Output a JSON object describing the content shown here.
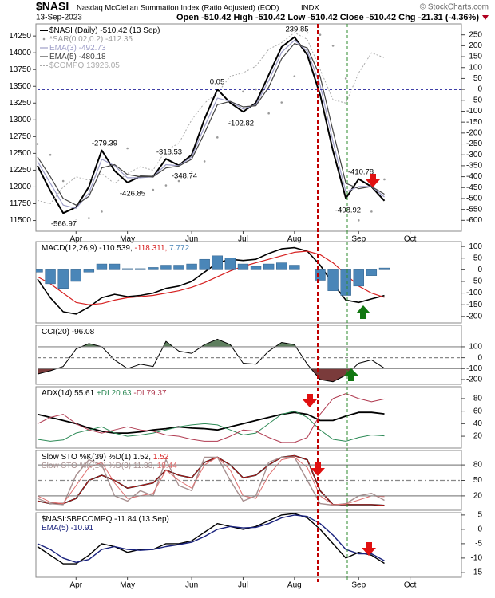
{
  "header": {
    "symbol": "$NASI",
    "title": "Nasdaq McClellan Summation Index (Ratio Adjusted) (EOD)",
    "exchange": "INDX",
    "credit": "© StockCharts.com",
    "date": "13-Sep-2023",
    "ohlc": "Open -510.42  High -510.42  Low -510.42  Close -510.42  Chg -21.31 (-4.36%)"
  },
  "chart_data": [
    {
      "type": "line",
      "categories": [
        null,
        null,
        null,
        "Apr",
        null,
        null,
        null,
        "May",
        null,
        null,
        null,
        null,
        "Jun",
        null,
        null,
        null,
        "Jul",
        null,
        null,
        null,
        "Aug",
        null,
        null,
        null,
        null,
        "Sep",
        null,
        null,
        null,
        "Oct",
        null,
        null,
        null,
        null
      ],
      "ylim": [
        -650,
        300
      ],
      "yticks": [
        250,
        200,
        150,
        100,
        50,
        0,
        -50,
        -100,
        -150,
        -200,
        -250,
        -300,
        -350,
        -400,
        -450,
        -500,
        -550,
        -600
      ],
      "y2lim": [
        11340,
        14430
      ],
      "y2ticks": [
        14250,
        14000,
        13750,
        13500,
        13250,
        13000,
        12750,
        12500,
        12250,
        12000,
        11750,
        11500
      ],
      "hlines": [
        {
          "value": 0,
          "color": "#00008b",
          "dash": "3,3"
        }
      ],
      "annotations": [
        "239.85",
        "0.05",
        "-102.82",
        "-279.39",
        "-318.53",
        "-348.74",
        "-426.85",
        "-566.97",
        "-410.78",
        "-498.92"
      ],
      "series": [
        {
          "name": "$NASI (Daily) -510.42 (13 Sep)",
          "color": "#000000",
          "width": 2,
          "values": [
            -350,
            -465,
            -566.97,
            -540,
            -446,
            -279.39,
            -373,
            -426.85,
            -399,
            -400,
            -318.53,
            -348.74,
            -300,
            -135,
            0.05,
            -62,
            -102.82,
            -62,
            66,
            194,
            239.85,
            158,
            -25,
            -282,
            -498.92,
            -410.78,
            -446,
            -510.42,
            null,
            null,
            null,
            null,
            null,
            null
          ]
        },
        {
          "name": "*SAR(0.02,0.2) -412.35",
          "color": "#9a9a9a",
          "kind": "dots",
          "values": [
            -250,
            -300,
            -420,
            -600,
            -590,
            -560,
            -250,
            -270,
            -470,
            -460,
            -440,
            -420,
            -380,
            -330,
            -220,
            -150,
            -10,
            0,
            -110,
            -60,
            60,
            260,
            250,
            200,
            50,
            -600,
            -560,
            -412.35,
            null,
            null,
            null,
            null,
            null,
            null
          ]
        },
        {
          "name": "EMA(3) -492.73",
          "color": "#9e9ec8",
          "width": 1.2,
          "values": [
            -330,
            -430,
            -530,
            -545,
            -475,
            -320,
            -350,
            -405,
            -405,
            -400,
            -345,
            -350,
            -310,
            -170,
            -40,
            -55,
            -90,
            -70,
            40,
            170,
            225,
            175,
            20,
            -240,
            -470,
            -445,
            -445,
            -492.73,
            null,
            null,
            null,
            null,
            null,
            null
          ]
        },
        {
          "name": "EMA(5) -480.18",
          "color": "#444444",
          "width": 1.2,
          "values": [
            -310,
            -400,
            -500,
            -530,
            -490,
            -360,
            -345,
            -390,
            -400,
            -400,
            -360,
            -352,
            -320,
            -200,
            -70,
            -55,
            -80,
            -75,
            10,
            140,
            210,
            190,
            60,
            -190,
            -430,
            -455,
            -445,
            -480.18,
            null,
            null,
            null,
            null,
            null,
            null
          ]
        },
        {
          "name": "$COMPQ 13926.05",
          "color": "#aaaaaa",
          "width": 1,
          "dash": "2,2",
          "axis": "y2",
          "values": [
            11800,
            11750,
            12000,
            12150,
            12100,
            12200,
            12050,
            12200,
            12300,
            12250,
            12550,
            12650,
            13000,
            13250,
            13400,
            13650,
            13700,
            13800,
            14050,
            14150,
            14300,
            14200,
            13750,
            13300,
            13250,
            13700,
            14000,
            13926.05,
            null,
            null,
            null,
            null,
            null,
            null
          ]
        }
      ]
    },
    {
      "type": "line",
      "ylim": [
        -228,
        121
      ],
      "yticks": [
        100,
        50,
        0,
        -50,
        -100,
        -150,
        -200
      ],
      "series": [
        {
          "name": "MACD(12,26,9) -110.539,",
          "color": "#000000",
          "width": 1.6,
          "values": [
            -40,
            -120,
            -180,
            -190,
            -160,
            -120,
            -105,
            -115,
            -110,
            -100,
            -80,
            -70,
            -50,
            -10,
            30,
            45,
            40,
            45,
            70,
            90,
            95,
            80,
            20,
            -60,
            -130,
            -140,
            -125,
            -110.539,
            null,
            null,
            null,
            null,
            null,
            null
          ]
        },
        {
          "name": "-118.311,",
          "color": "#d62020",
          "width": 1.2,
          "values": [
            -30,
            -60,
            -100,
            -140,
            -150,
            -145,
            -130,
            -120,
            -115,
            -110,
            -100,
            -90,
            -75,
            -55,
            -30,
            -5,
            15,
            30,
            45,
            60,
            75,
            80,
            65,
            30,
            -20,
            -70,
            -100,
            -118.311,
            null,
            null,
            null,
            null,
            null,
            null
          ]
        },
        {
          "name": "7.772",
          "color": "#4a86b8",
          "kind": "bar",
          "values": [
            -10,
            -60,
            -80,
            -50,
            -10,
            25,
            25,
            5,
            5,
            10,
            20,
            20,
            25,
            45,
            60,
            50,
            25,
            15,
            25,
            30,
            20,
            0,
            -45,
            -90,
            -110,
            -70,
            -25,
            7.772,
            null,
            null,
            null,
            null,
            null,
            null
          ]
        }
      ]
    },
    {
      "type": "line",
      "ylim": [
        -244,
        297
      ],
      "yticks": [
        100,
        0,
        -100,
        -200
      ],
      "hlines": [
        {
          "value": 100,
          "color": "#888888",
          "dash": "none"
        },
        {
          "value": 0,
          "color": "#888888",
          "dash": "4,3"
        },
        {
          "value": -100,
          "color": "#888888",
          "dash": "none"
        }
      ],
      "fill_above": {
        "value": 100,
        "color": "#5f7f5f"
      },
      "fill_below": {
        "value": -100,
        "color": "#7a3b3b"
      },
      "series": [
        {
          "name": "CCI(20) -96.08",
          "color": "#000000",
          "width": 1,
          "values": [
            -150,
            -120,
            -80,
            80,
            130,
            100,
            -20,
            -100,
            -60,
            -80,
            150,
            60,
            40,
            120,
            170,
            120,
            -50,
            -60,
            60,
            140,
            120,
            -60,
            -200,
            -220,
            -160,
            -50,
            -20,
            -96.08,
            null,
            null,
            null,
            null,
            null,
            null
          ]
        }
      ]
    },
    {
      "type": "line",
      "ylim": [
        1,
        99
      ],
      "yticks": [
        80,
        60,
        40,
        20
      ],
      "series": [
        {
          "name": "ADX(14) 55.61",
          "color": "#000000",
          "width": 1.8,
          "values": [
            55,
            50,
            45,
            40,
            33,
            28,
            25,
            25,
            27,
            30,
            32,
            35,
            33,
            32,
            30,
            35,
            40,
            45,
            50,
            55,
            58,
            55,
            45,
            45,
            52,
            58,
            58,
            55.61,
            null,
            null,
            null,
            null,
            null,
            null
          ]
        },
        {
          "name": "+DI 20.63",
          "color": "#2e8b57",
          "width": 1,
          "values": [
            15,
            12,
            14,
            25,
            30,
            35,
            25,
            20,
            22,
            25,
            30,
            35,
            38,
            40,
            38,
            30,
            22,
            25,
            40,
            55,
            60,
            50,
            30,
            15,
            12,
            18,
            22,
            20.63,
            null,
            null,
            null,
            null,
            null,
            null
          ]
        },
        {
          "name": "-DI 79.37",
          "color": "#b03a50",
          "width": 1,
          "values": [
            40,
            50,
            55,
            40,
            30,
            25,
            30,
            35,
            30,
            28,
            22,
            20,
            15,
            12,
            12,
            20,
            30,
            28,
            18,
            10,
            10,
            18,
            55,
            80,
            88,
            80,
            75,
            79.37,
            null,
            null,
            null,
            null,
            null,
            null
          ]
        }
      ]
    },
    {
      "type": "line",
      "ylim": [
        -8,
        108
      ],
      "yticks": [
        80,
        50,
        20
      ],
      "hlines": [
        {
          "value": 80,
          "color": "#888888",
          "dash": "none"
        },
        {
          "value": 50,
          "color": "#888888",
          "dash": "6,3,2,3"
        },
        {
          "value": 20,
          "color": "#888888",
          "dash": "none"
        }
      ],
      "series": [
        {
          "name": "Slow STO %K(39) %D(1) 1.52,",
          "color": "#000000",
          "width": 1.6,
          "values": [
            10,
            5,
            5,
            15,
            50,
            60,
            50,
            35,
            40,
            45,
            70,
            60,
            55,
            85,
            95,
            80,
            55,
            60,
            80,
            95,
            98,
            90,
            30,
            3,
            3,
            3,
            3,
            1.52,
            null,
            null,
            null,
            null,
            null,
            null
          ]
        },
        {
          "name": "1.52",
          "color": "#d62020",
          "width": 0.8,
          "values": [
            10,
            5,
            5,
            15,
            50,
            60,
            50,
            35,
            40,
            45,
            70,
            60,
            55,
            85,
            95,
            80,
            55,
            60,
            80,
            95,
            98,
            90,
            30,
            3,
            3,
            3,
            3,
            1.52,
            null,
            null,
            null,
            null,
            null,
            null
          ]
        },
        {
          "name": "Slow STO %K(14) %D(3) 11.33,",
          "color": "#a89090",
          "width": 1.4,
          "values": [
            15,
            5,
            3,
            60,
            90,
            80,
            20,
            10,
            30,
            20,
            90,
            40,
            30,
            95,
            95,
            50,
            10,
            20,
            85,
            95,
            95,
            50,
            5,
            2,
            5,
            20,
            25,
            11.33,
            null,
            null,
            null,
            null,
            null,
            null
          ]
        },
        {
          "name": "18.44",
          "color": "#e07070",
          "width": 1,
          "values": [
            20,
            8,
            5,
            40,
            75,
            85,
            45,
            15,
            20,
            25,
            70,
            50,
            35,
            80,
            95,
            70,
            20,
            15,
            60,
            90,
            95,
            75,
            20,
            3,
            4,
            12,
            20,
            18.44,
            null,
            null,
            null,
            null,
            null,
            null
          ]
        }
      ]
    },
    {
      "type": "line",
      "categories": [
        null,
        null,
        null,
        "Apr",
        null,
        null,
        null,
        "May",
        null,
        null,
        null,
        null,
        "Jun",
        null,
        null,
        null,
        "Jul",
        null,
        null,
        null,
        "Aug",
        null,
        null,
        null,
        null,
        "Sep",
        null,
        null,
        null,
        "Oct",
        null,
        null,
        null,
        null
      ],
      "ylim": [
        -16.7,
        5.8
      ],
      "yticks": [
        5,
        0,
        -5,
        -10,
        -15
      ],
      "series": [
        {
          "name": "$NASI:$BPCOMPQ -11.84 (13 Sep)",
          "color": "#000000",
          "width": 1.4,
          "values": [
            -6,
            -9,
            -12,
            -12,
            -9,
            -5,
            -6,
            -8,
            -7,
            -7,
            -5,
            -5,
            -4,
            -1,
            2,
            1,
            0,
            1,
            3,
            5,
            5.5,
            4,
            0,
            -5,
            -10,
            -8,
            -9,
            -11.84,
            null,
            null,
            null,
            null,
            null,
            null
          ]
        },
        {
          "name": "EMA(5) -10.91",
          "color": "#1a237e",
          "width": 1.4,
          "values": [
            -5,
            -7,
            -10,
            -11.5,
            -10.5,
            -7,
            -6,
            -7,
            -7.3,
            -7,
            -6,
            -5.3,
            -4.5,
            -2.5,
            0,
            1,
            0.5,
            0.7,
            2,
            4,
            5,
            4.5,
            2,
            -2,
            -7,
            -8.5,
            -8.5,
            -10.91,
            null,
            null,
            null,
            null,
            null,
            null
          ]
        }
      ]
    }
  ]
}
